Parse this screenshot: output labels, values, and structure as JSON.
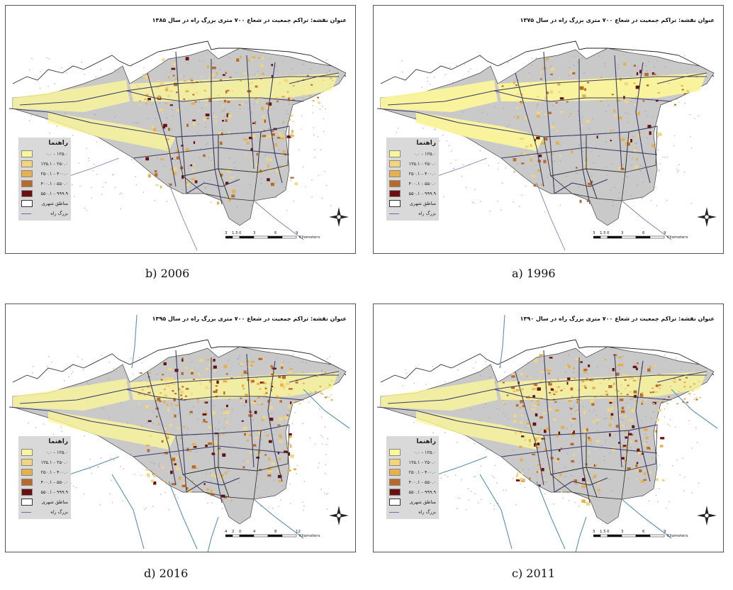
{
  "legend": {
    "title": "راهنما",
    "classes": [
      {
        "label": "۰.۰ - ۱۲۵.۰",
        "color": "#fbf69a"
      },
      {
        "label": "۱۲۵.۱ - ۲۵۰.۰",
        "color": "#f3d67c"
      },
      {
        "label": "۲۵۰.۱ - ۴۰۰.۰",
        "color": "#e6b04e"
      },
      {
        "label": "۴۰۰.۱ - ۵۵۰.۰",
        "color": "#b86a2a"
      },
      {
        "label": "۵۵۰.۱ - ۹۹۹.۹",
        "color": "#6b1010"
      }
    ],
    "boundary_label": "مناطق شهری",
    "highway_label": "بزرگ راه"
  },
  "panels": [
    {
      "id": "b",
      "caption": "b) 2006",
      "map_title": "عنوان نقشه: تراکم جمعیت در شعاع ۷۰۰ متری بزرگ راه در سال ۱۳۸۵",
      "scale_ticks": [
        "3",
        "1.5",
        "0",
        "3",
        "6",
        "9"
      ],
      "scale_unit": "Kilometers"
    },
    {
      "id": "a",
      "caption": "a) 1996",
      "map_title": "عنوان نقشه: تراکم جمعیت در شعاع ۷۰۰ متری بزرگ راه در سال ۱۳۷۵",
      "scale_ticks": [
        "3",
        "1.5",
        "0",
        "3",
        "6",
        "9"
      ],
      "scale_unit": "Kilometers"
    },
    {
      "id": "d",
      "caption": "d) 2016",
      "map_title": "عنوان نقشه: تراکم جمعیت در شعاع ۷۰۰ متری بزرگ راه در سال ۱۳۹۵",
      "scale_ticks": [
        "4",
        "2",
        "0",
        "4",
        "8",
        "12"
      ],
      "scale_unit": "Kilometers"
    },
    {
      "id": "c",
      "caption": "c) 2011",
      "map_title": "عنوان نقشه: تراکم جمعیت در شعاع ۷۰۰ متری بزرگ راه در سال ۱۳۹۰",
      "scale_ticks": [
        "3",
        "1.5",
        "0",
        "3",
        "6",
        "9"
      ],
      "scale_unit": "Kilometers"
    }
  ],
  "colors": {
    "urban_gray": "#c9c9c9",
    "district_line": "#2a2a2a",
    "highway": "#3c3c6a",
    "river": "#5a8fb0",
    "buffer_yellow": "#fbf69a"
  },
  "icons": {
    "north_arrow": "compass-rose-icon"
  }
}
